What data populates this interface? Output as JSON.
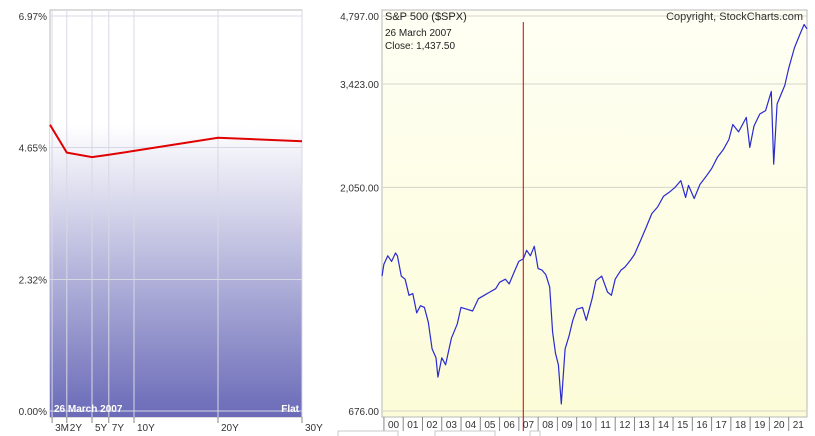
{
  "chart_data": [
    {
      "type": "line",
      "x_labels": [
        "3M",
        "2Y",
        "5Y",
        "7Y",
        "10Y",
        "20Y",
        "30Y"
      ],
      "x_positions_years": [
        0.25,
        2,
        5,
        7,
        10,
        20,
        30
      ],
      "y_ticks": [
        "6.97%",
        "4.65%",
        "2.32%",
        "0.00%"
      ],
      "y_tick_values": [
        6.97,
        4.65,
        2.32,
        0.0
      ],
      "ylim": [
        0.0,
        6.97
      ],
      "values": [
        5.05,
        4.56,
        4.48,
        4.52,
        4.59,
        4.82,
        4.76
      ],
      "date_label": "26  March 2007",
      "shape_label": "Flat",
      "line_color": "#e00000",
      "grid": true
    },
    {
      "type": "line",
      "title": "S&P 500 ($SPX)",
      "copyright": "Copyright, StockCharts.com",
      "y_scale": "log",
      "y_ticks": [
        "4,797.00",
        "3,423.00",
        "2,050.00",
        "676.00"
      ],
      "y_tick_values": [
        4797,
        3423,
        2050,
        676
      ],
      "ylim": [
        676,
        4797
      ],
      "x_labels": [
        "00",
        "01",
        "02",
        "03",
        "04",
        "05",
        "06",
        "07",
        "08",
        "09",
        "10",
        "11",
        "12",
        "13",
        "14",
        "15",
        "16",
        "17",
        "18",
        "19",
        "20",
        "21"
      ],
      "x_start": 1999.9,
      "x_end": 2021.95,
      "x": [
        1999.9,
        2000.0,
        2000.2,
        2000.4,
        2000.6,
        2000.7,
        2000.9,
        2001.1,
        2001.3,
        2001.5,
        2001.7,
        2001.9,
        2002.1,
        2002.3,
        2002.5,
        2002.7,
        2002.8,
        2003.0,
        2003.2,
        2003.5,
        2003.8,
        2004.0,
        2004.3,
        2004.6,
        2004.9,
        2005.2,
        2005.5,
        2005.8,
        2006.0,
        2006.3,
        2006.5,
        2006.8,
        2007.0,
        2007.23,
        2007.4,
        2007.6,
        2007.8,
        2008.0,
        2008.2,
        2008.4,
        2008.6,
        2008.75,
        2008.9,
        2009.05,
        2009.2,
        2009.4,
        2009.6,
        2009.8,
        2010.0,
        2010.3,
        2010.5,
        2010.8,
        2011.0,
        2011.3,
        2011.6,
        2011.8,
        2012.0,
        2012.3,
        2012.5,
        2012.8,
        2013.0,
        2013.3,
        2013.6,
        2013.9,
        2014.2,
        2014.5,
        2014.8,
        2015.1,
        2015.4,
        2015.65,
        2015.8,
        2016.1,
        2016.4,
        2016.7,
        2017.0,
        2017.3,
        2017.6,
        2017.9,
        2018.1,
        2018.4,
        2018.8,
        2018.98,
        2019.2,
        2019.5,
        2019.8,
        2020.1,
        2020.22,
        2020.4,
        2020.6,
        2020.8,
        2021.0,
        2021.3,
        2021.6,
        2021.8,
        2021.95
      ],
      "y": [
        1320,
        1400,
        1460,
        1420,
        1480,
        1460,
        1320,
        1300,
        1200,
        1210,
        1100,
        1140,
        1130,
        1050,
        920,
        880,
        800,
        880,
        850,
        970,
        1040,
        1130,
        1120,
        1110,
        1180,
        1200,
        1220,
        1240,
        1280,
        1300,
        1270,
        1360,
        1420,
        1437.5,
        1500,
        1460,
        1530,
        1370,
        1360,
        1330,
        1250,
        1000,
        900,
        850,
        700,
        920,
        980,
        1060,
        1120,
        1130,
        1060,
        1180,
        1290,
        1320,
        1220,
        1200,
        1300,
        1360,
        1380,
        1430,
        1470,
        1570,
        1680,
        1800,
        1860,
        1960,
        2000,
        2050,
        2120,
        1950,
        2070,
        1940,
        2080,
        2160,
        2250,
        2380,
        2470,
        2600,
        2800,
        2700,
        2900,
        2500,
        2780,
        2950,
        3000,
        3300,
        2300,
        3100,
        3250,
        3400,
        3700,
        4100,
        4400,
        4600,
        4500
      ],
      "marker_x": 2007.23,
      "marker_date": "26  March 2007",
      "marker_close": "Close: 1,437.50",
      "line_color": "#2a2ad0",
      "marker_color": "#d00000",
      "grid": true
    }
  ]
}
